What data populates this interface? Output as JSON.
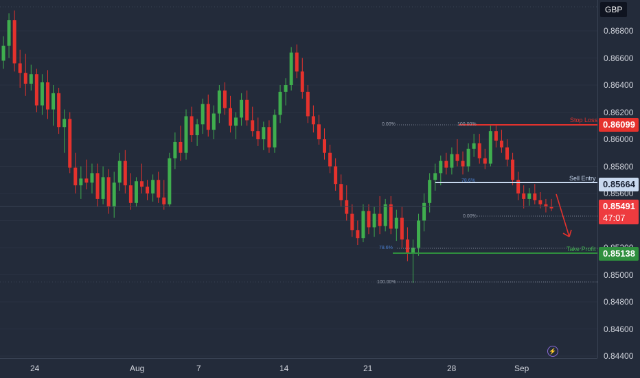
{
  "app": {
    "currency": "GBP"
  },
  "chart_data": {
    "type": "candlestick",
    "y_axis": {
      "ticks": [
        "0.86800",
        "0.86600",
        "0.86400",
        "0.86200",
        "0.86000",
        "0.85800",
        "0.85600",
        "0.85400",
        "0.85200",
        "0.85000",
        "0.84800",
        "0.84600",
        "0.84400"
      ],
      "range": [
        0.8436,
        0.8702
      ]
    },
    "x_axis": {
      "ticks": [
        "24",
        "Aug",
        "7",
        "14",
        "21",
        "28",
        "Sep"
      ]
    },
    "levels": {
      "stop_loss": {
        "label": "Stop Loss",
        "price": "0.86099",
        "color": "#e5322d"
      },
      "sell_entry": {
        "label": "Sell Entry",
        "price": "0.85664",
        "color": "#c9d9ef"
      },
      "take_profit": {
        "label": "Take Profit",
        "price": "0.85138",
        "color": "#2f8f3e"
      },
      "last_price": {
        "price": "0.85491",
        "countdown": "47:07",
        "color": "#ee3b3f"
      }
    },
    "fib_left": {
      "top": "0.00%",
      "mid": "78.6%",
      "bottom": "100.00%"
    },
    "fib_right": {
      "top": "100.00%",
      "mid": "78.6%",
      "bottom": "0.00%"
    },
    "candles": [
      [
        0.8658,
        0.8676,
        0.8652,
        0.8669
      ],
      [
        0.8669,
        0.8693,
        0.866,
        0.8688
      ],
      [
        0.8688,
        0.8695,
        0.865,
        0.8656
      ],
      [
        0.8656,
        0.8666,
        0.8638,
        0.8649
      ],
      [
        0.8649,
        0.8663,
        0.8632,
        0.8641
      ],
      [
        0.8641,
        0.8655,
        0.8636,
        0.8648
      ],
      [
        0.8648,
        0.8652,
        0.862,
        0.8625
      ],
      [
        0.8625,
        0.8648,
        0.8618,
        0.8642
      ],
      [
        0.8642,
        0.8651,
        0.8615,
        0.8622
      ],
      [
        0.8622,
        0.864,
        0.861,
        0.8634
      ],
      [
        0.8634,
        0.8638,
        0.8604,
        0.8609
      ],
      [
        0.8609,
        0.8622,
        0.859,
        0.8615
      ],
      [
        0.8615,
        0.862,
        0.8575,
        0.8579
      ],
      [
        0.8579,
        0.859,
        0.856,
        0.8566
      ],
      [
        0.8566,
        0.858,
        0.8556,
        0.8571
      ],
      [
        0.8571,
        0.8585,
        0.8563,
        0.8568
      ],
      [
        0.8568,
        0.8582,
        0.856,
        0.8575
      ],
      [
        0.8575,
        0.8582,
        0.855,
        0.8556
      ],
      [
        0.8556,
        0.858,
        0.8552,
        0.8572
      ],
      [
        0.8572,
        0.8578,
        0.8545,
        0.855
      ],
      [
        0.855,
        0.8576,
        0.8542,
        0.8568
      ],
      [
        0.8568,
        0.859,
        0.8562,
        0.8584
      ],
      [
        0.8584,
        0.8592,
        0.856,
        0.8566
      ],
      [
        0.8566,
        0.8575,
        0.8548,
        0.8553
      ],
      [
        0.8553,
        0.8572,
        0.855,
        0.8569
      ],
      [
        0.8569,
        0.8582,
        0.856,
        0.8565
      ],
      [
        0.8565,
        0.857,
        0.8555,
        0.856
      ],
      [
        0.856,
        0.8574,
        0.8554,
        0.857
      ],
      [
        0.857,
        0.8576,
        0.8553,
        0.8557
      ],
      [
        0.8557,
        0.857,
        0.8548,
        0.8552
      ],
      [
        0.8552,
        0.859,
        0.855,
        0.8586
      ],
      [
        0.8586,
        0.8605,
        0.8578,
        0.8598
      ],
      [
        0.8598,
        0.861,
        0.8584,
        0.859
      ],
      [
        0.859,
        0.8622,
        0.8585,
        0.8617
      ],
      [
        0.8617,
        0.8624,
        0.8598,
        0.8603
      ],
      [
        0.8603,
        0.8615,
        0.8595,
        0.8611
      ],
      [
        0.8611,
        0.863,
        0.8604,
        0.8626
      ],
      [
        0.8626,
        0.8633,
        0.8602,
        0.8607
      ],
      [
        0.8607,
        0.8625,
        0.86,
        0.8619
      ],
      [
        0.8619,
        0.864,
        0.8612,
        0.8636
      ],
      [
        0.8636,
        0.8642,
        0.8618,
        0.8623
      ],
      [
        0.8623,
        0.8632,
        0.8605,
        0.861
      ],
      [
        0.861,
        0.862,
        0.86,
        0.8616
      ],
      [
        0.8616,
        0.8634,
        0.861,
        0.8629
      ],
      [
        0.8629,
        0.8636,
        0.861,
        0.8614
      ],
      [
        0.8614,
        0.8624,
        0.8602,
        0.8606
      ],
      [
        0.8606,
        0.8616,
        0.8595,
        0.86
      ],
      [
        0.86,
        0.8613,
        0.8592,
        0.8609
      ],
      [
        0.8609,
        0.8614,
        0.859,
        0.8594
      ],
      [
        0.8594,
        0.8622,
        0.859,
        0.8618
      ],
      [
        0.8618,
        0.864,
        0.8612,
        0.8635
      ],
      [
        0.8635,
        0.8645,
        0.8625,
        0.864
      ],
      [
        0.864,
        0.8668,
        0.8636,
        0.8664
      ],
      [
        0.8664,
        0.867,
        0.8645,
        0.865
      ],
      [
        0.865,
        0.866,
        0.863,
        0.8635
      ],
      [
        0.8635,
        0.864,
        0.8612,
        0.8617
      ],
      [
        0.8617,
        0.8625,
        0.8605,
        0.8611
      ],
      [
        0.8611,
        0.8618,
        0.8596,
        0.86
      ],
      [
        0.86,
        0.8608,
        0.8585,
        0.859
      ],
      [
        0.859,
        0.8596,
        0.8575,
        0.858
      ],
      [
        0.858,
        0.8586,
        0.8562,
        0.8567
      ],
      [
        0.8567,
        0.8574,
        0.855,
        0.8555
      ],
      [
        0.8555,
        0.8566,
        0.854,
        0.8545
      ],
      [
        0.8545,
        0.8552,
        0.8528,
        0.8533
      ],
      [
        0.8533,
        0.854,
        0.8522,
        0.8527
      ],
      [
        0.8527,
        0.8552,
        0.8524,
        0.8547
      ],
      [
        0.8547,
        0.8552,
        0.853,
        0.8535
      ],
      [
        0.8535,
        0.855,
        0.8528,
        0.8545
      ],
      [
        0.8545,
        0.8558,
        0.853,
        0.8536
      ],
      [
        0.8536,
        0.8556,
        0.8532,
        0.8552
      ],
      [
        0.8552,
        0.8558,
        0.853,
        0.8534
      ],
      [
        0.8534,
        0.8548,
        0.8525,
        0.8542
      ],
      [
        0.8542,
        0.855,
        0.852,
        0.8526
      ],
      [
        0.8526,
        0.8535,
        0.851,
        0.8516
      ],
      [
        0.8516,
        0.8526,
        0.8494,
        0.852
      ],
      [
        0.852,
        0.8545,
        0.8514,
        0.854
      ],
      [
        0.854,
        0.856,
        0.8532,
        0.8553
      ],
      [
        0.8553,
        0.8575,
        0.8546,
        0.857
      ],
      [
        0.857,
        0.8582,
        0.8562,
        0.8575
      ],
      [
        0.8575,
        0.8588,
        0.8566,
        0.8584
      ],
      [
        0.8584,
        0.859,
        0.8574,
        0.8579
      ],
      [
        0.8579,
        0.8594,
        0.8574,
        0.8589
      ],
      [
        0.8589,
        0.86,
        0.858,
        0.8584
      ],
      [
        0.8584,
        0.8591,
        0.8574,
        0.858
      ],
      [
        0.858,
        0.8597,
        0.8576,
        0.8593
      ],
      [
        0.8593,
        0.8604,
        0.8587,
        0.8597
      ],
      [
        0.8597,
        0.8604,
        0.8582,
        0.8586
      ],
      [
        0.8586,
        0.8593,
        0.8578,
        0.8582
      ],
      [
        0.8582,
        0.861,
        0.858,
        0.8606
      ],
      [
        0.8606,
        0.861,
        0.8594,
        0.8599
      ],
      [
        0.8599,
        0.8607,
        0.859,
        0.8594
      ],
      [
        0.8594,
        0.86,
        0.858,
        0.8585
      ],
      [
        0.8585,
        0.859,
        0.8566,
        0.857
      ],
      [
        0.857,
        0.8576,
        0.8555,
        0.856
      ],
      [
        0.856,
        0.8566,
        0.8549,
        0.8556
      ],
      [
        0.8556,
        0.8564,
        0.8551,
        0.856
      ],
      [
        0.856,
        0.8567,
        0.8552,
        0.8555
      ],
      [
        0.8555,
        0.8561,
        0.8549,
        0.8552
      ],
      [
        0.8552,
        0.8556,
        0.8546,
        0.855
      ],
      [
        0.855,
        0.8556,
        0.8547,
        0.8549
      ]
    ]
  }
}
